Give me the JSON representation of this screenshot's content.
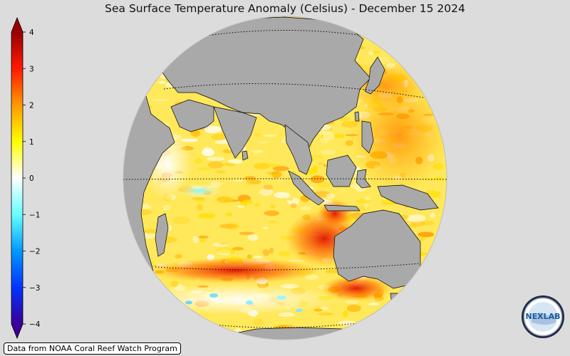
{
  "title": "Sea Surface Temperature Anomaly (Celsius) - December 15 2024",
  "credit": "Data from NOAA Coral Reef Watch Program",
  "logo": {
    "text": "NEXLAB"
  },
  "colorbar": {
    "min": -4,
    "max": 4,
    "ticks": [
      "4",
      "3",
      "2",
      "1",
      "0",
      "−1",
      "−2",
      "−3",
      "−4"
    ],
    "stops": [
      {
        "v": -4,
        "c": "#3a0099"
      },
      {
        "v": -3,
        "c": "#0033ff"
      },
      {
        "v": -2,
        "c": "#0099ff"
      },
      {
        "v": -1,
        "c": "#66ffff"
      },
      {
        "v": 0,
        "c": "#ffffff"
      },
      {
        "v": 1,
        "c": "#ffff00"
      },
      {
        "v": 2,
        "c": "#ff9900"
      },
      {
        "v": 3,
        "c": "#ff1a00"
      },
      {
        "v": 4,
        "c": "#990000"
      }
    ]
  },
  "colors": {
    "land": "#a9a9a9",
    "ocean_base": "#ffe85a",
    "background": "#dcdcdc"
  }
}
